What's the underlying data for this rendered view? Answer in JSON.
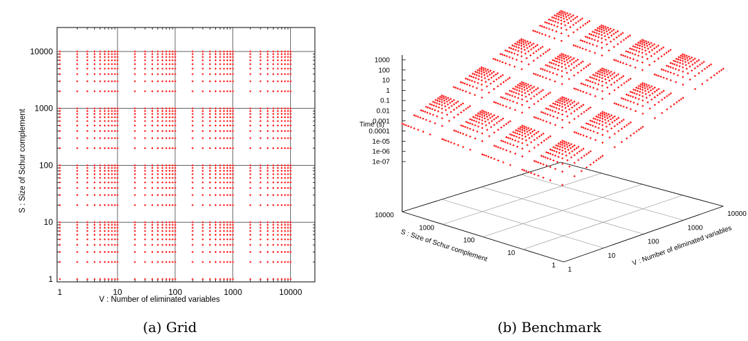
{
  "chart_data": [
    {
      "type": "scatter",
      "caption": "(a) Grid",
      "xlabel": "V : Number of eliminated variables",
      "ylabel": "S : Size of Schur complement",
      "xscale": "log",
      "yscale": "log",
      "xlim": [
        1,
        20000
      ],
      "ylim": [
        1,
        20000
      ],
      "x_ticks": [
        "1",
        "10",
        "100",
        "1000",
        "10000"
      ],
      "y_ticks": [
        "1",
        "10",
        "100",
        "1000",
        "10000"
      ],
      "grid": true,
      "point_color": "#ff0000",
      "x_values": [
        1,
        2,
        3,
        4,
        5,
        6,
        7,
        8,
        9,
        10,
        20,
        30,
        40,
        50,
        60,
        70,
        80,
        90,
        100,
        200,
        300,
        400,
        500,
        600,
        700,
        800,
        900,
        1000,
        2000,
        3000,
        4000,
        5000,
        6000,
        7000,
        8000,
        9000,
        10000
      ],
      "y_values": [
        1,
        2,
        3,
        4,
        5,
        6,
        7,
        8,
        9,
        10,
        20,
        30,
        40,
        50,
        60,
        70,
        80,
        90,
        100,
        200,
        300,
        400,
        500,
        600,
        700,
        800,
        900,
        1000,
        2000,
        3000,
        4000,
        5000,
        6000,
        7000,
        8000,
        9000,
        10000
      ]
    },
    {
      "type": "scatter",
      "caption": "(b) Benchmark",
      "zlabel": "Time (s)",
      "xlabel": "V : Number of eliminated variables",
      "ylabel": "S : Size of Schur complement",
      "z_ticks": [
        "1000",
        "100",
        "10",
        "1",
        "0.1",
        "0.01",
        "0.001",
        "0.0001",
        "1e-05",
        "1e-06",
        "1e-07"
      ],
      "v_ticks": [
        "1",
        "10",
        "100",
        "1000",
        "10000"
      ],
      "s_ticks": [
        "10000",
        "1000",
        "100",
        "10",
        "1"
      ],
      "point_color": "#ff0000",
      "marker": "+"
    }
  ]
}
